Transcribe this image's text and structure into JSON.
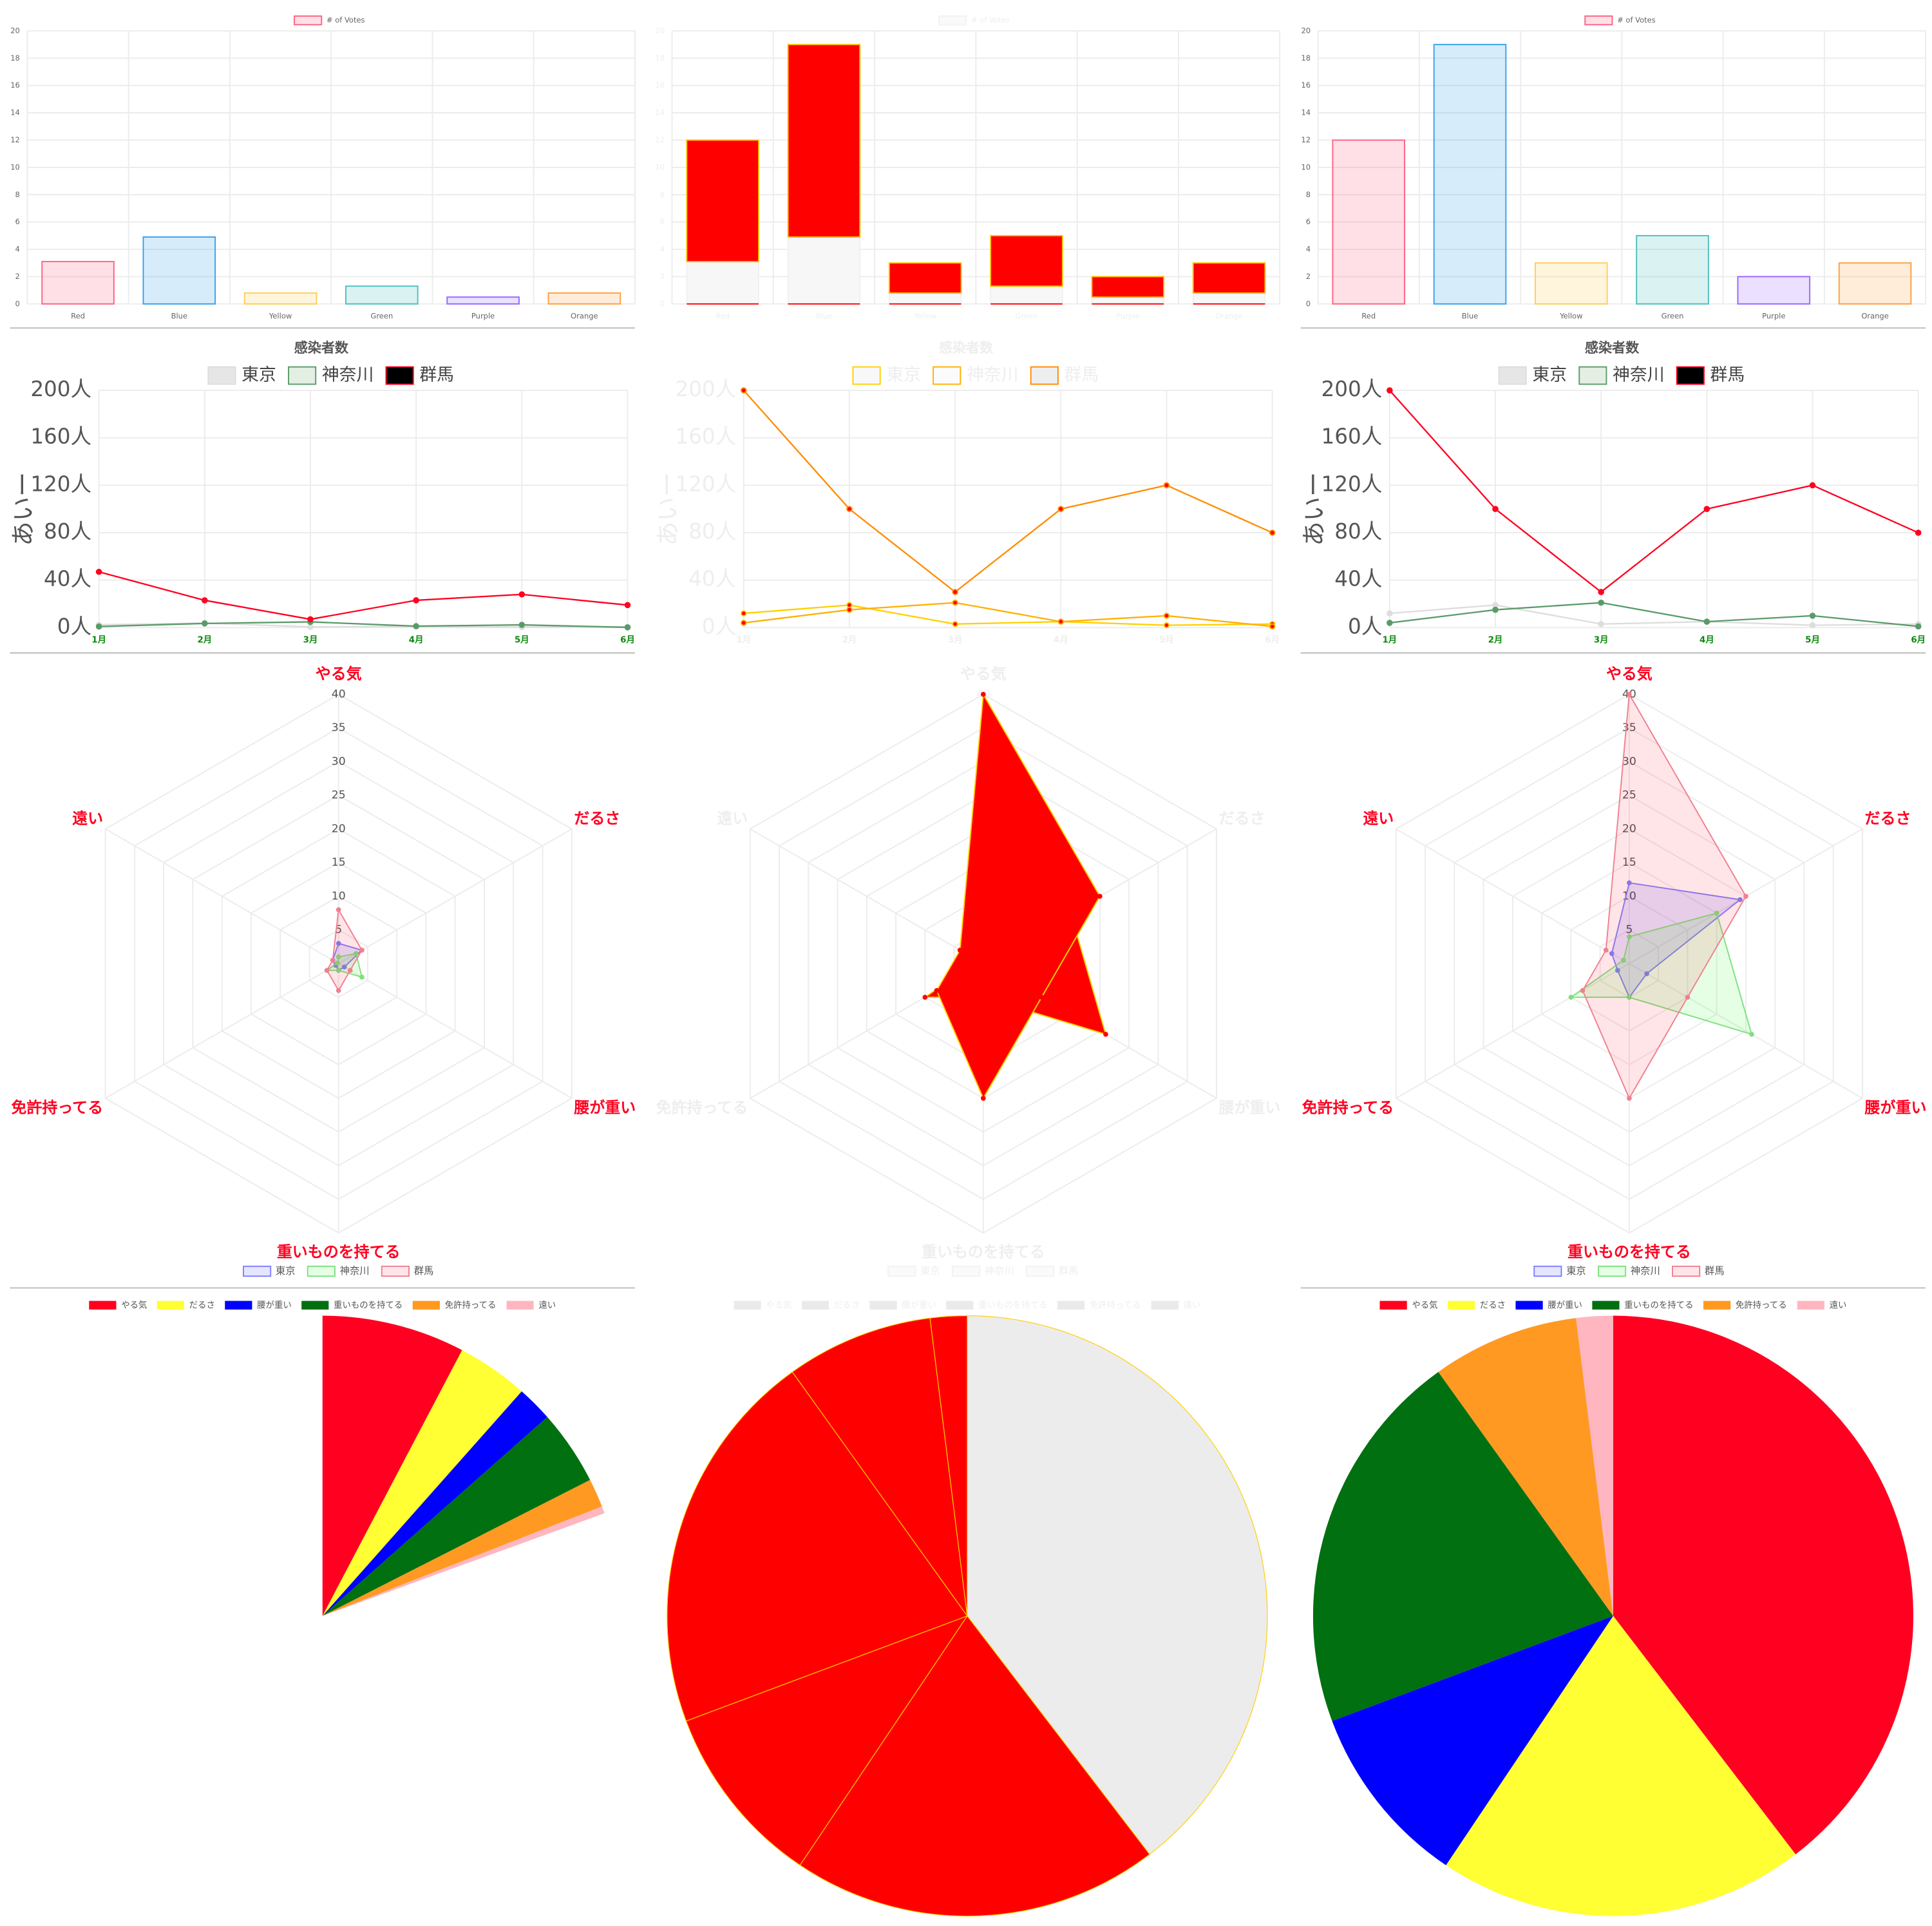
{
  "chart_data": [
    {
      "type": "bar",
      "legend": "# of Votes",
      "categories": [
        "Red",
        "Blue",
        "Yellow",
        "Green",
        "Purple",
        "Orange"
      ],
      "values": [
        3.1,
        4.9,
        0.8,
        1.3,
        0.5,
        0.8
      ],
      "colors": [
        "rgba(255,99,132,0.2)",
        "rgba(54,162,235,0.2)",
        "rgba(255,206,86,0.2)",
        "rgba(75,192,192,0.2)",
        "rgba(153,102,255,0.2)",
        "rgba(255,159,64,0.2)"
      ],
      "border_colors": [
        "#ff6384",
        "#36a2eb",
        "#ffce56",
        "#4bc0c0",
        "#9966ff",
        "#ff9f40"
      ],
      "ylim": [
        0,
        20
      ],
      "yticks": [
        0,
        2,
        4,
        6,
        8,
        10,
        12,
        14,
        16,
        18,
        20
      ],
      "grid": true
    },
    {
      "type": "stacked_bar",
      "faded": true,
      "categories": [
        "Red",
        "Blue",
        "Yellow",
        "Green",
        "Purple",
        "Orange"
      ],
      "series": [
        {
          "name": "# of Votes",
          "color": "#f7f7f7",
          "border_color": "#f0f0f0",
          "values": [
            3.1,
            4.9,
            0.8,
            1.3,
            0.5,
            0.8
          ]
        },
        {
          "color": "#ff0000",
          "border_color": "#ffc000",
          "values": [
            8.9,
            14.1,
            2.2,
            3.7,
            1.5,
            2.2
          ]
        }
      ],
      "ylim": [
        0,
        20
      ],
      "yticks": [
        0,
        2,
        4,
        6,
        8,
        10,
        12,
        14,
        16,
        18,
        20
      ],
      "grid": true
    },
    {
      "type": "bar",
      "legend": "# of Votes",
      "categories": [
        "Red",
        "Blue",
        "Yellow",
        "Green",
        "Purple",
        "Orange"
      ],
      "values": [
        12,
        19,
        3,
        5,
        2,
        3
      ],
      "colors": [
        "rgba(255,99,132,0.2)",
        "rgba(54,162,235,0.2)",
        "rgba(255,206,86,0.2)",
        "rgba(75,192,192,0.2)",
        "rgba(153,102,255,0.2)",
        "rgba(255,159,64,0.2)"
      ],
      "border_colors": [
        "#ff6384",
        "#36a2eb",
        "#ffce56",
        "#4bc0c0",
        "#9966ff",
        "#ff9f40"
      ],
      "ylim": [
        0,
        20
      ],
      "yticks": [
        0,
        2,
        4,
        6,
        8,
        10,
        12,
        14,
        16,
        18,
        20
      ],
      "grid": true
    },
    {
      "type": "line",
      "title": "感染者数",
      "y_label": "あいー",
      "categories": [
        "1月",
        "2月",
        "3月",
        "4月",
        "5月",
        "6月"
      ],
      "ylim": [
        0,
        200
      ],
      "yticks": [
        {
          "value": 0,
          "label": "0人"
        },
        {
          "value": 40,
          "label": "40人"
        },
        {
          "value": 80,
          "label": "80人"
        },
        {
          "value": 120,
          "label": "120人"
        },
        {
          "value": 160,
          "label": "160人"
        },
        {
          "value": 200,
          "label": "200人"
        }
      ],
      "grid": true,
      "series": [
        {
          "name": "東京",
          "color": "#dddddd",
          "fill": "#e6e6e6",
          "values": [
            2.4,
            3.8,
            0.6,
            1,
            0.4,
            0.6
          ]
        },
        {
          "name": "神奈川",
          "color": "#5a9a6a",
          "fill": "#e3efe3",
          "values": [
            0.9,
            3.5,
            4.8,
            1.2,
            2.3,
            0.2
          ]
        },
        {
          "name": "群馬",
          "color": "#ff0020",
          "fill": "#000000",
          "values": [
            47,
            23,
            7,
            23,
            28,
            19
          ]
        }
      ]
    },
    {
      "type": "line",
      "faded": true,
      "title": "感染者数",
      "y_label": "あいー",
      "categories": [
        "1月",
        "2月",
        "3月",
        "4月",
        "5月",
        "6月"
      ],
      "ylim": [
        0,
        200
      ],
      "yticks": [
        {
          "value": 0,
          "label": "0人"
        },
        {
          "value": 40,
          "label": "40人"
        },
        {
          "value": 80,
          "label": "80人"
        },
        {
          "value": 120,
          "label": "120人"
        },
        {
          "value": 160,
          "label": "160人"
        },
        {
          "value": 200,
          "label": "200人"
        }
      ],
      "grid": true,
      "series": [
        {
          "name": "東京",
          "color": "#ffd000",
          "fill": "#f8f8f8",
          "values": [
            12,
            19,
            3,
            5,
            2,
            3
          ]
        },
        {
          "name": "神奈川",
          "color": "#ffb000",
          "fill": "#fbfbfb",
          "values": [
            4,
            15,
            21,
            5,
            10,
            1
          ]
        },
        {
          "name": "群馬",
          "color": "#ff8c00",
          "fill": "#eeeeee",
          "values": [
            200,
            100,
            30,
            100,
            120,
            80
          ]
        }
      ]
    },
    {
      "type": "line",
      "title": "感染者数",
      "y_label": "あいー",
      "categories": [
        "1月",
        "2月",
        "3月",
        "4月",
        "5月",
        "6月"
      ],
      "ylim": [
        0,
        200
      ],
      "yticks": [
        {
          "value": 0,
          "label": "0人"
        },
        {
          "value": 40,
          "label": "40人"
        },
        {
          "value": 80,
          "label": "80人"
        },
        {
          "value": 120,
          "label": "120人"
        },
        {
          "value": 160,
          "label": "160人"
        },
        {
          "value": 200,
          "label": "200人"
        }
      ],
      "grid": true,
      "series": [
        {
          "name": "東京",
          "color": "#dddddd",
          "fill": "#e6e6e6",
          "values": [
            12,
            19,
            3,
            5,
            2,
            3
          ]
        },
        {
          "name": "神奈川",
          "color": "#5a9a6a",
          "fill": "#e3efe3",
          "values": [
            4,
            15,
            21,
            5,
            10,
            1
          ]
        },
        {
          "name": "群馬",
          "color": "#ff0020",
          "fill": "#000000",
          "values": [
            200,
            100,
            30,
            100,
            120,
            80
          ]
        }
      ]
    },
    {
      "type": "radar",
      "categories": [
        "やる気",
        "だるさ",
        "腰が重い",
        "重いものを持てる",
        "免許持ってる",
        "遠い"
      ],
      "ylim": [
        0,
        40
      ],
      "yticks": [
        5,
        10,
        15,
        20,
        25,
        30,
        35,
        40
      ],
      "series": [
        {
          "name": "東京",
          "color": "#8080ff",
          "fill": "rgba(0,0,255,0.1)",
          "values": [
            3,
            4,
            1,
            1,
            0.5,
            1
          ]
        },
        {
          "name": "神奈川",
          "color": "#7fe07f",
          "fill": "rgba(0,255,0,0.1)",
          "values": [
            1,
            3,
            4,
            1,
            2,
            0.2
          ]
        },
        {
          "name": "群馬",
          "color": "#f08090",
          "fill": "rgba(255,0,32,0.1)",
          "values": [
            8,
            4,
            2,
            4,
            2,
            1
          ]
        }
      ]
    },
    {
      "type": "radar",
      "faded": true,
      "categories": [
        "やる気",
        "だるさ",
        "腰が重い",
        "重いものを持てる",
        "免許持ってる",
        "遠い"
      ],
      "ylim": [
        0,
        40
      ],
      "yticks": [
        5,
        10,
        15,
        20,
        25,
        30,
        35,
        40
      ],
      "series": [
        {
          "name": "東京",
          "color": "#ffd000",
          "fill": "#ff0000",
          "values": [
            12,
            19,
            3,
            5,
            2,
            3
          ]
        },
        {
          "name": "神奈川",
          "color": "#ffd000",
          "fill": "#ff0000",
          "values": [
            4,
            15,
            21,
            5,
            10,
            1
          ]
        },
        {
          "name": "群馬",
          "color": "#ffd000",
          "fill": "#ff0000",
          "values": [
            40,
            20,
            10,
            20,
            8,
            4
          ]
        }
      ]
    },
    {
      "type": "radar",
      "categories": [
        "やる気",
        "だるさ",
        "腰が重い",
        "重いものを持てる",
        "免許持ってる",
        "遠い"
      ],
      "ylim": [
        0,
        40
      ],
      "yticks": [
        5,
        10,
        15,
        20,
        25,
        30,
        35,
        40
      ],
      "series": [
        {
          "name": "東京",
          "color": "#8080ff",
          "fill": "rgba(0,0,255,0.1)",
          "values": [
            12,
            19,
            3,
            5,
            2,
            3
          ]
        },
        {
          "name": "神奈川",
          "color": "#7fe07f",
          "fill": "rgba(0,255,0,0.1)",
          "values": [
            4,
            15,
            21,
            5,
            10,
            1
          ]
        },
        {
          "name": "群馬",
          "color": "#f08090",
          "fill": "rgba(255,0,32,0.1)",
          "values": [
            40,
            20,
            10,
            20,
            8,
            4
          ]
        }
      ]
    },
    {
      "type": "pie",
      "categories": [
        "やる気",
        "だるさ",
        "腰が重い",
        "重いものを持てる",
        "免許持ってる",
        "遠い"
      ],
      "values": [
        40,
        20,
        10,
        21,
        8,
        2
      ],
      "circumference": 70,
      "colors": [
        "#ff0020",
        "#ffff33",
        "#0000ff",
        "#007010",
        "#ff9922",
        "#ffb6c1"
      ]
    },
    {
      "type": "pie",
      "faded": true,
      "categories": [
        "やる気",
        "だるさ",
        "腰が重い",
        "重いものを持てる",
        "免許持ってる",
        "遠い"
      ],
      "values": [
        40,
        20,
        10,
        21,
        8,
        2
      ],
      "colors": [
        "#ececec",
        "#ff0000",
        "#ff0000",
        "#ff0000",
        "#ff0000",
        "#ff0000"
      ],
      "border_color": "#ffd000"
    },
    {
      "type": "pie",
      "categories": [
        "やる気",
        "だるさ",
        "腰が重い",
        "重いものを持てる",
        "免許持ってる",
        "遠い"
      ],
      "values": [
        40,
        20,
        10,
        21,
        8,
        2
      ],
      "colors": [
        "#ff0020",
        "#ffff33",
        "#0000ff",
        "#007010",
        "#ff9922",
        "#ffb6c1"
      ]
    }
  ]
}
